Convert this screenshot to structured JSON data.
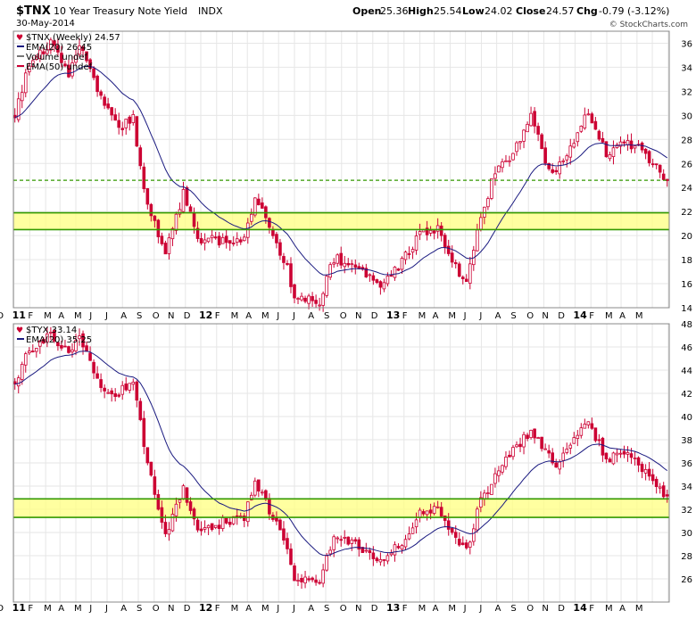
{
  "header": {
    "symbol": "$TNX",
    "name": "10 Year Treasury Note Yield",
    "exchange": "INDX",
    "date": "30-May-2014",
    "quote": {
      "open_label": "Open",
      "open": "25.36",
      "high_label": "High",
      "high": "25.54",
      "low_label": "Low",
      "low": "24.02",
      "close_label": "Close",
      "close": "24.57",
      "chg_label": "Chg",
      "chg": "-0.79 (-3.12%)"
    },
    "credit": "© StockCharts.com"
  },
  "colors": {
    "candle": "#cc0033",
    "ema": "#1a1a80",
    "grid": "#e6e6e6",
    "band_fill": "#ffff80",
    "band_line": "#339900",
    "dashed_line": "#339900",
    "frame": "#888888"
  },
  "x_axis": {
    "labels": [
      "D",
      "11",
      "F",
      "M",
      "A",
      "M",
      "J",
      "J",
      "A",
      "S",
      "O",
      "N",
      "D",
      "12",
      "F",
      "M",
      "A",
      "M",
      "J",
      "J",
      "A",
      "S",
      "O",
      "N",
      "D",
      "13",
      "F",
      "M",
      "A",
      "M",
      "J",
      "J",
      "A",
      "S",
      "O",
      "N",
      "D",
      "14",
      "F",
      "M",
      "A",
      "M"
    ],
    "bold_labels": [
      "11",
      "12",
      "13",
      "14"
    ]
  },
  "chart_data": [
    {
      "type": "candlestick",
      "title": "$TNX (Weekly) 24.57",
      "legend": [
        "$TNX (Weekly) 24.57",
        "EMA(20) 26.45",
        "Volume undef",
        "EMA(50) undef"
      ],
      "legend_colors": [
        "#cc0033",
        "#1a1a80",
        "#777777",
        "#cc0033"
      ],
      "period": "weekly",
      "x_start": "2010-12-03",
      "x_end": "2014-05-30",
      "ylim": [
        14,
        37
      ],
      "yticks": [
        14,
        16,
        18,
        20,
        22,
        24,
        26,
        28,
        30,
        32,
        34,
        36
      ],
      "grid": true,
      "close_anchors": [
        [
          "2010-12-03",
          29.8
        ],
        [
          "2010-12-24",
          33.5
        ],
        [
          "2011-02-11",
          36.2
        ],
        [
          "2011-03-18",
          33.6
        ],
        [
          "2011-04-08",
          35.8
        ],
        [
          "2011-05-20",
          31.5
        ],
        [
          "2011-06-24",
          28.8
        ],
        [
          "2011-07-22",
          29.8
        ],
        [
          "2011-08-12",
          23.5
        ],
        [
          "2011-09-23",
          18.6
        ],
        [
          "2011-10-28",
          23.5
        ],
        [
          "2011-11-25",
          19.8
        ],
        [
          "2012-01-20",
          19.5
        ],
        [
          "2012-02-24",
          19.7
        ],
        [
          "2012-03-16",
          23.2
        ],
        [
          "2012-04-13",
          20.8
        ],
        [
          "2012-05-18",
          17.3
        ],
        [
          "2012-06-01",
          14.6
        ],
        [
          "2012-07-20",
          14.6
        ],
        [
          "2012-08-17",
          18.1
        ],
        [
          "2012-10-05",
          17.5
        ],
        [
          "2012-11-16",
          15.8
        ],
        [
          "2012-12-28",
          17.8
        ],
        [
          "2013-02-01",
          20.2
        ],
        [
          "2013-03-08",
          20.6
        ],
        [
          "2013-04-19",
          16.9
        ],
        [
          "2013-05-03",
          16.4
        ],
        [
          "2013-05-31",
          21.3
        ],
        [
          "2013-06-28",
          25.5
        ],
        [
          "2013-07-26",
          26.2
        ],
        [
          "2013-09-06",
          29.9
        ],
        [
          "2013-10-04",
          26.3
        ],
        [
          "2013-10-25",
          25.2
        ],
        [
          "2013-12-06",
          28.6
        ],
        [
          "2013-12-27",
          30.4
        ],
        [
          "2014-01-31",
          26.8
        ],
        [
          "2014-03-07",
          27.9
        ],
        [
          "2014-04-04",
          27.3
        ],
        [
          "2014-05-02",
          26.0
        ],
        [
          "2014-05-30",
          24.57
        ]
      ],
      "ema": {
        "label": "EMA(20)",
        "last": 26.45
      },
      "annotations": {
        "dashed_line": 24.6,
        "band": [
          20.5,
          21.9
        ]
      }
    },
    {
      "type": "candlestick",
      "title": "$TYX 33.14",
      "legend": [
        "$TYX 33.14",
        "EMA(20) 35.25"
      ],
      "legend_colors": [
        "#cc0033",
        "#1a1a80"
      ],
      "period": "weekly",
      "x_start": "2010-12-03",
      "x_end": "2014-05-30",
      "ylim": [
        24,
        48
      ],
      "yticks": [
        26,
        28,
        30,
        32,
        34,
        36,
        38,
        40,
        42,
        44,
        46,
        48
      ],
      "grid": true,
      "close_anchors": [
        [
          "2010-12-03",
          42.8
        ],
        [
          "2010-12-24",
          45.3
        ],
        [
          "2011-02-11",
          47.3
        ],
        [
          "2011-03-18",
          45.2
        ],
        [
          "2011-04-08",
          46.9
        ],
        [
          "2011-05-20",
          42.6
        ],
        [
          "2011-06-24",
          42.0
        ],
        [
          "2011-07-22",
          43.2
        ],
        [
          "2011-08-12",
          37.5
        ],
        [
          "2011-09-23",
          29.8
        ],
        [
          "2011-10-28",
          33.8
        ],
        [
          "2011-11-25",
          30.0
        ],
        [
          "2012-01-20",
          31.0
        ],
        [
          "2012-02-24",
          31.3
        ],
        [
          "2012-03-16",
          34.5
        ],
        [
          "2012-04-13",
          32.0
        ],
        [
          "2012-05-18",
          28.8
        ],
        [
          "2012-06-01",
          26.2
        ],
        [
          "2012-07-20",
          25.6
        ],
        [
          "2012-08-17",
          29.8
        ],
        [
          "2012-10-05",
          28.9
        ],
        [
          "2012-11-16",
          27.5
        ],
        [
          "2012-12-28",
          29.2
        ],
        [
          "2013-02-01",
          31.8
        ],
        [
          "2013-03-08",
          32.2
        ],
        [
          "2013-04-19",
          29.0
        ],
        [
          "2013-05-03",
          28.4
        ],
        [
          "2013-05-31",
          32.8
        ],
        [
          "2013-06-28",
          34.7
        ],
        [
          "2013-07-26",
          36.6
        ],
        [
          "2013-09-06",
          38.8
        ],
        [
          "2013-10-04",
          37.1
        ],
        [
          "2013-10-25",
          36.0
        ],
        [
          "2013-12-06",
          38.5
        ],
        [
          "2013-12-27",
          39.7
        ],
        [
          "2014-01-31",
          36.2
        ],
        [
          "2014-03-07",
          36.8
        ],
        [
          "2014-04-04",
          35.9
        ],
        [
          "2014-05-02",
          34.4
        ],
        [
          "2014-05-30",
          33.14
        ]
      ],
      "ema": {
        "label": "EMA(20)",
        "last": 35.25
      },
      "annotations": {
        "band": [
          31.3,
          32.9
        ]
      }
    }
  ]
}
